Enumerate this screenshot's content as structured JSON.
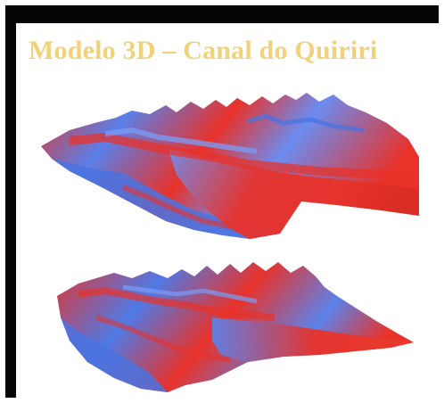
{
  "slide": {
    "title": "Modelo 3D – Canal do Quiriri",
    "header_text": "",
    "colors": {
      "title": "#f1d27a",
      "frame": "#050505",
      "terrain_red": "#e8322a",
      "terrain_blue": "#4d78e6",
      "background": "#ffffff"
    }
  }
}
